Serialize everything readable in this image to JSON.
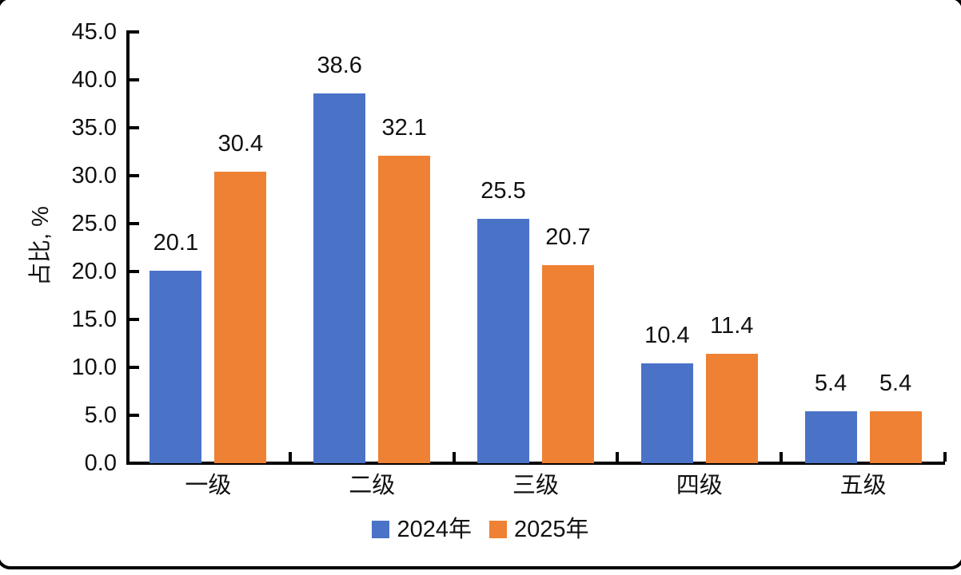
{
  "frame": {
    "background_color": "#ffffff",
    "border_color": "#000000"
  },
  "chart_data": {
    "type": "bar",
    "title": "",
    "xlabel": "",
    "ylabel": "占比, %",
    "categories": [
      "一级",
      "二级",
      "三级",
      "四级",
      "五级"
    ],
    "series": [
      {
        "name": "2024年",
        "color": "#4A73C8",
        "values": [
          20.1,
          38.6,
          25.5,
          10.4,
          5.4
        ]
      },
      {
        "name": "2025年",
        "color": "#EE8133",
        "values": [
          30.4,
          32.1,
          20.7,
          11.4,
          5.4
        ]
      }
    ],
    "value_labels": [
      [
        "20.1",
        "38.6",
        "25.5",
        "10.4",
        "5.4"
      ],
      [
        "30.4",
        "32.1",
        "20.7",
        "11.4",
        "5.4"
      ]
    ],
    "ylim": [
      0,
      45
    ],
    "ytick_labels": [
      "0.0",
      "5.0",
      "10.0",
      "15.0",
      "20.0",
      "25.0",
      "30.0",
      "35.0",
      "40.0",
      "45.0"
    ],
    "ytick_values": [
      0,
      5,
      10,
      15,
      20,
      25,
      30,
      35,
      40,
      45
    ],
    "grid": false,
    "legend_position": "bottom-center",
    "axis_color": "#000000",
    "text_color": "#111111"
  }
}
